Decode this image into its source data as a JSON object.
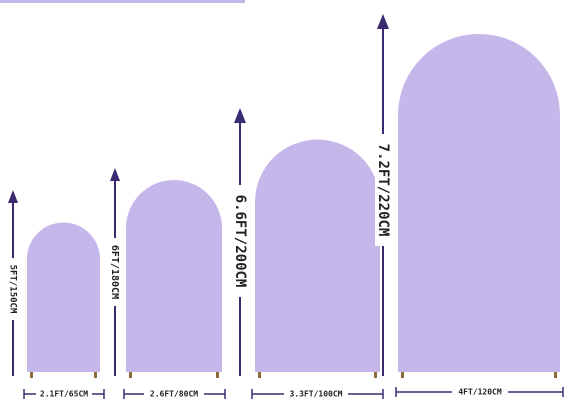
{
  "items": [
    {
      "height_label": "5FT/150CM",
      "width_label": "2.1FT/65CM"
    },
    {
      "height_label": "6FT/180CM",
      "width_label": "2.6FT/80CM"
    },
    {
      "height_label": "6.6FT/200CM",
      "width_label": "3.3FT/100CM"
    },
    {
      "height_label": "7.2FT/220CM",
      "width_label": "4FT/120CM"
    }
  ]
}
